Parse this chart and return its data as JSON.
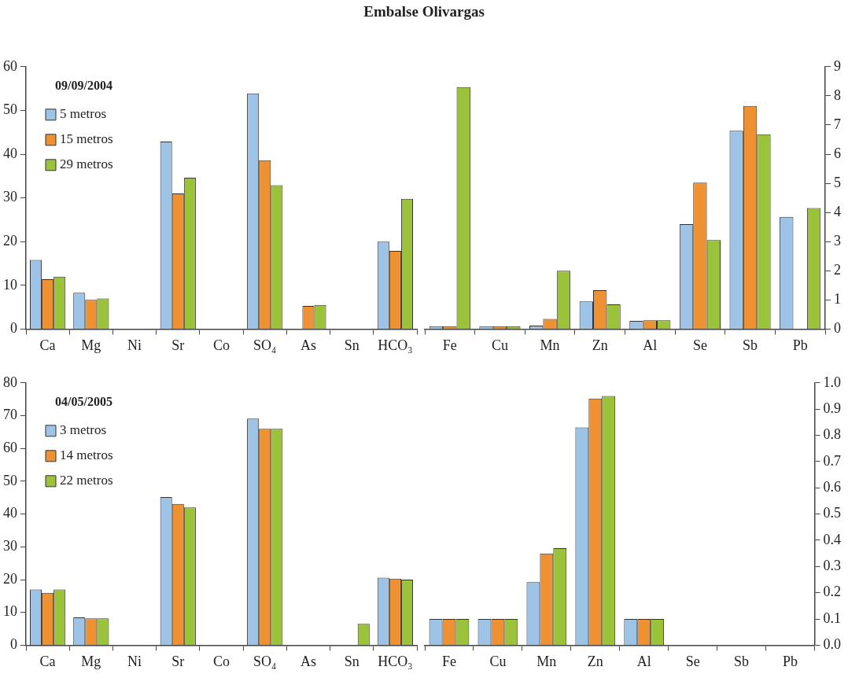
{
  "chart_data": [
    {
      "type": "bar",
      "title": "Embalse Olivargas",
      "legend_title": "09/09/2004",
      "legend": "top left",
      "categories": [
        "Ca",
        "Mg",
        "Ni",
        "Sr",
        "Co",
        "SO₄",
        "As",
        "Sn",
        "HCO₃"
      ],
      "ylim": [
        0,
        60
      ],
      "yticks": [
        0,
        10,
        20,
        30,
        40,
        50,
        60
      ],
      "series": [
        {
          "name": "5 metros",
          "color": "#9dc3e6",
          "values": [
            15.8,
            8.3,
            null,
            42.9,
            null,
            53.9,
            null,
            null,
            20
          ]
        },
        {
          "name": "15 metros",
          "color": "#ed9133",
          "values": [
            11.4,
            6.7,
            null,
            31,
            null,
            38.6,
            5.3,
            null,
            17.9
          ]
        },
        {
          "name": "29 metros",
          "color": "#9bc33a",
          "values": [
            12,
            7,
            null,
            34.6,
            null,
            32.9,
            5.5,
            null,
            29.8
          ]
        }
      ]
    },
    {
      "type": "bar",
      "categories": [
        "Fe",
        "Cu",
        "Mn",
        "Zn",
        "Al",
        "Se",
        "Sb",
        "Pb"
      ],
      "ylim": [
        0,
        9
      ],
      "yticks": [
        0,
        1,
        2,
        3,
        4,
        5,
        6,
        7,
        8,
        9
      ],
      "series": [
        {
          "color": "#9dc3e6",
          "values": [
            0.1,
            0.1,
            0.12,
            0.95,
            0.28,
            3.6,
            6.8,
            3.85
          ]
        },
        {
          "color": "#ed9133",
          "values": [
            0.1,
            0.1,
            0.35,
            1.33,
            0.3,
            5.02,
            7.65,
            null
          ]
        },
        {
          "color": "#9bc33a",
          "values": [
            8.3,
            0.1,
            2.0,
            0.85,
            0.3,
            3.05,
            6.68,
            4.15
          ]
        }
      ]
    },
    {
      "type": "bar",
      "legend_title": "04/05/2005",
      "legend": "top left",
      "categories": [
        "Ca",
        "Mg",
        "Ni",
        "Sr",
        "Co",
        "SO₄",
        "As",
        "Sn",
        "HCO₃"
      ],
      "ylim": [
        0,
        80
      ],
      "yticks": [
        0,
        10,
        20,
        30,
        40,
        50,
        60,
        70,
        80
      ],
      "series": [
        {
          "name": "3 metros",
          "color": "#9dc3e6",
          "values": [
            17,
            8.5,
            null,
            45.2,
            null,
            69.1,
            null,
            null,
            20.6
          ]
        },
        {
          "name": "14 metros",
          "color": "#ed9133",
          "values": [
            16,
            8.2,
            null,
            43.1,
            null,
            66,
            null,
            null,
            20.3
          ]
        },
        {
          "name": "22 metros",
          "color": "#9bc33a",
          "values": [
            17,
            8.2,
            null,
            42,
            null,
            66,
            null,
            6.5,
            20
          ]
        }
      ]
    },
    {
      "type": "bar",
      "categories": [
        "Fe",
        "Cu",
        "Mn",
        "Zn",
        "Al",
        "Se",
        "Sb",
        "Pb"
      ],
      "ylim": [
        0,
        1
      ],
      "yticks": [
        {
          "value": 0,
          "label": "0.0"
        },
        0.1,
        0.2,
        0.3,
        0.4,
        0.5,
        0.6,
        0.7,
        0.8,
        0.9,
        {
          "value": 1,
          "label": "1.0"
        }
      ],
      "series": [
        {
          "color": "#9dc3e6",
          "values": [
            0.1,
            0.1,
            0.24,
            0.83,
            0.1,
            null,
            null,
            null
          ]
        },
        {
          "color": "#ed9133",
          "values": [
            0.1,
            0.1,
            0.35,
            0.94,
            0.1,
            null,
            null,
            null
          ]
        },
        {
          "color": "#9bc33a",
          "values": [
            0.1,
            0.1,
            0.37,
            0.95,
            0.1,
            null,
            null,
            null
          ]
        }
      ]
    }
  ]
}
